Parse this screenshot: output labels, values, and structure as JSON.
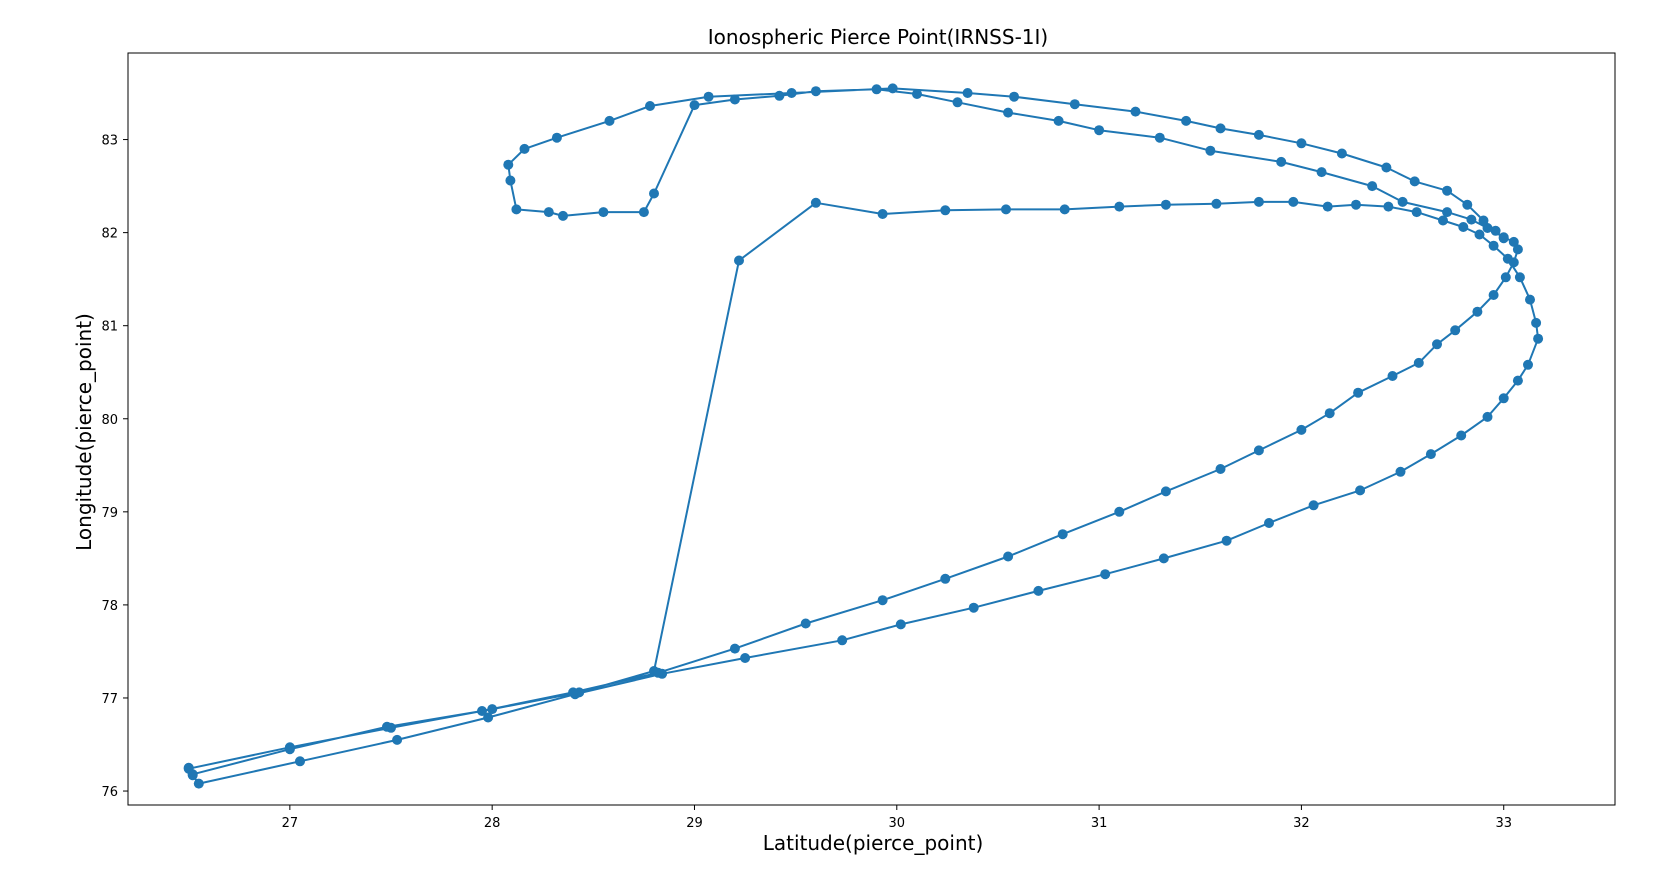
{
  "chart_data": {
    "type": "line",
    "title": "Ionospheric Pierce Point(IRNSS-1I)",
    "xlabel": "Latitude(pierce_point)",
    "ylabel": "Longitude(pierce_point)",
    "xlim": [
      26.2,
      33.55
    ],
    "ylim": [
      75.85,
      83.93
    ],
    "xticks": [
      27,
      28,
      29,
      30,
      31,
      32,
      33
    ],
    "yticks": [
      76,
      77,
      78,
      79,
      80,
      81,
      82,
      83
    ],
    "marker": "circle",
    "color": "#1f77b4",
    "grid": false,
    "legend": "none",
    "series": [
      {
        "x": [
          26.5,
          26.52,
          26.55,
          27.05,
          27.53,
          27.98,
          28.41,
          28.84,
          29.25,
          29.73,
          30.02,
          30.38,
          30.7,
          31.03,
          31.32,
          31.63,
          31.84,
          32.06,
          32.29,
          32.49,
          32.64,
          32.79,
          32.92,
          33.0,
          33.07,
          33.12,
          33.17,
          33.16,
          33.13,
          33.08,
          33.02,
          32.95,
          32.88,
          32.8,
          32.7,
          32.57,
          32.43,
          32.27,
          32.13,
          31.96,
          31.79,
          31.58,
          31.33,
          31.1,
          30.83,
          30.54,
          30.24,
          29.93,
          29.6,
          29.22,
          28.8,
          28.43,
          28.0,
          27.5,
          27.0,
          26.5,
          26.52,
          27.0,
          27.48,
          27.95,
          28.4,
          28.82,
          29.2,
          29.55,
          29.93,
          30.24,
          30.55,
          30.82,
          31.1,
          31.33,
          31.6,
          31.79,
          32.0,
          32.14,
          32.28,
          32.45,
          32.58,
          32.67,
          32.76,
          32.87,
          32.95,
          33.01,
          33.05,
          33.07,
          33.05,
          33.0,
          32.92,
          32.84,
          32.72,
          32.5,
          32.35,
          32.1,
          31.9,
          31.55,
          31.3,
          31.0,
          30.8,
          30.55,
          30.3,
          30.1,
          29.9,
          29.6,
          29.42,
          29.2,
          29.0,
          28.8,
          28.75,
          28.55,
          28.35,
          28.28,
          28.12,
          28.09,
          28.08,
          28.16,
          28.32,
          28.58,
          28.78,
          29.07,
          29.48,
          29.98,
          30.35,
          30.58,
          30.88,
          31.18,
          31.43,
          31.6,
          31.79,
          32.0,
          32.2,
          32.42,
          32.56,
          32.72,
          32.82,
          32.9,
          32.96,
          33.0
        ],
        "y": [
          76.25,
          76.17,
          76.08,
          76.32,
          76.55,
          76.79,
          77.04,
          77.26,
          77.43,
          77.62,
          77.79,
          77.97,
          78.15,
          78.33,
          78.5,
          78.69,
          78.88,
          79.07,
          79.23,
          79.43,
          79.62,
          79.82,
          80.02,
          80.22,
          80.41,
          80.58,
          80.86,
          81.03,
          81.28,
          81.52,
          81.72,
          81.86,
          81.98,
          82.06,
          82.13,
          82.22,
          82.28,
          82.3,
          82.28,
          82.33,
          82.33,
          82.31,
          82.3,
          82.28,
          82.25,
          82.25,
          82.24,
          82.2,
          82.32,
          81.7,
          77.29,
          77.06,
          76.88,
          76.68,
          76.47,
          76.24,
          76.18,
          76.45,
          76.69,
          76.86,
          77.06,
          77.27,
          77.53,
          77.8,
          78.05,
          78.28,
          78.52,
          78.76,
          79.0,
          79.22,
          79.46,
          79.66,
          79.88,
          80.06,
          80.28,
          80.46,
          80.6,
          80.8,
          80.95,
          81.15,
          81.33,
          81.52,
          81.68,
          81.82,
          81.9,
          81.95,
          82.05,
          82.14,
          82.22,
          82.33,
          82.5,
          82.65,
          82.76,
          82.88,
          83.02,
          83.1,
          83.2,
          83.29,
          83.4,
          83.49,
          83.54,
          83.52,
          83.47,
          83.43,
          83.37,
          82.42,
          82.22,
          82.22,
          82.18,
          82.22,
          82.25,
          82.56,
          82.73,
          82.9,
          83.02,
          83.2,
          83.36,
          83.46,
          83.5,
          83.55,
          83.5,
          83.46,
          83.38,
          83.3,
          83.2,
          83.12,
          83.05,
          82.96,
          82.85,
          82.7,
          82.55,
          82.45,
          82.3,
          82.13,
          82.02,
          81.94
        ]
      }
    ]
  }
}
